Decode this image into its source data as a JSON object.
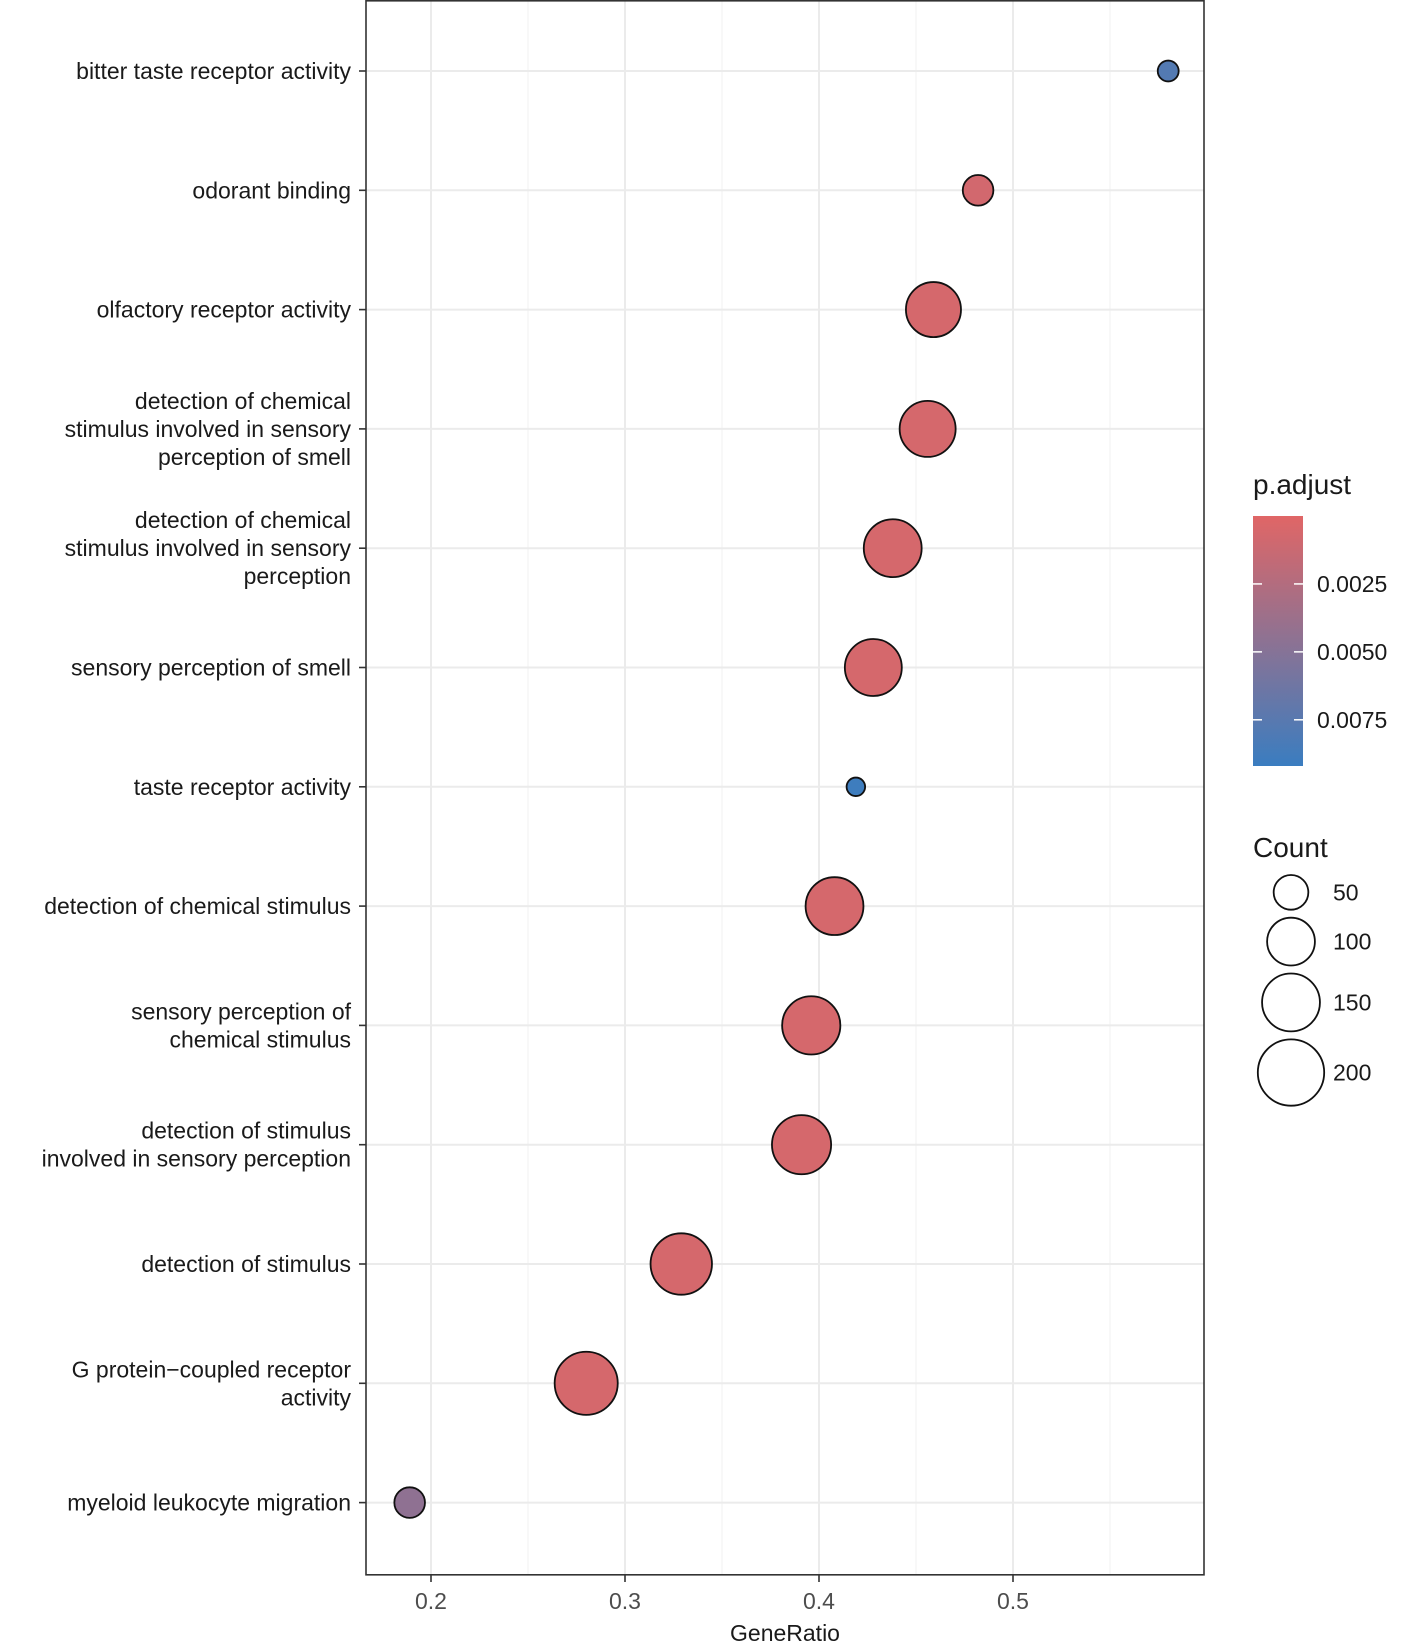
{
  "chart_data": {
    "type": "scatter",
    "title": "",
    "xlabel": "GeneRatio",
    "ylabel": "",
    "xlim": [
      0.166,
      0.597
    ],
    "xticks": [
      0.2,
      0.3,
      0.4,
      0.5
    ],
    "xtick_labels": [
      "0.2",
      "0.3",
      "0.4",
      "0.5"
    ],
    "grid": true,
    "categories": [
      "bitter taste receptor activity",
      "odorant binding",
      "olfactory receptor activity",
      "detection of chemical stimulus involved in sensory perception of smell",
      "detection of chemical stimulus involved in sensory perception",
      "sensory perception of smell",
      "taste receptor activity",
      "detection of chemical stimulus",
      "sensory perception of chemical stimulus",
      "detection of stimulus involved in sensory perception",
      "detection of stimulus",
      "G protein-coupled receptor activity",
      "myeloid leukocyte migration"
    ],
    "category_lines": [
      [
        "bitter taste receptor activity"
      ],
      [
        "odorant binding"
      ],
      [
        "olfactory receptor activity"
      ],
      [
        "detection of chemical",
        "stimulus involved in sensory",
        "perception of smell"
      ],
      [
        "detection of chemical",
        "stimulus involved in sensory",
        "perception"
      ],
      [
        "sensory perception of smell"
      ],
      [
        "taste receptor activity"
      ],
      [
        "detection of chemical stimulus"
      ],
      [
        "sensory perception of",
        "chemical stimulus"
      ],
      [
        "detection of stimulus",
        "involved in sensory perception"
      ],
      [
        "detection of stimulus"
      ],
      [
        "G protein−coupled receptor",
        "activity"
      ],
      [
        "myeloid leukocyte migration"
      ]
    ],
    "gene_ratio": [
      0.58,
      0.482,
      0.459,
      0.456,
      0.438,
      0.428,
      0.419,
      0.408,
      0.396,
      0.391,
      0.329,
      0.28,
      0.189
    ],
    "count": [
      16,
      38,
      135,
      140,
      150,
      145,
      12,
      150,
      152,
      157,
      170,
      180,
      38
    ],
    "p_adjust": [
      0.0078,
      0.0008,
      0.0006,
      0.0006,
      0.0006,
      0.0006,
      0.009,
      0.0006,
      0.0006,
      0.0006,
      0.0006,
      0.0006,
      0.0045
    ],
    "legend": {
      "color": {
        "title": "p.adjust",
        "tick_values": [
          0.0025,
          0.005,
          0.0075
        ],
        "tick_labels": [
          "0.0025",
          "0.0050",
          "0.0075"
        ],
        "range": [
          0.0,
          0.0092
        ],
        "low_color": "#E06666",
        "high_color": "#3A7DC0"
      },
      "size": {
        "title": "Count",
        "values": [
          50,
          100,
          150,
          200
        ],
        "labels": [
          "50",
          "100",
          "150",
          "200"
        ]
      },
      "placement": "right"
    }
  }
}
